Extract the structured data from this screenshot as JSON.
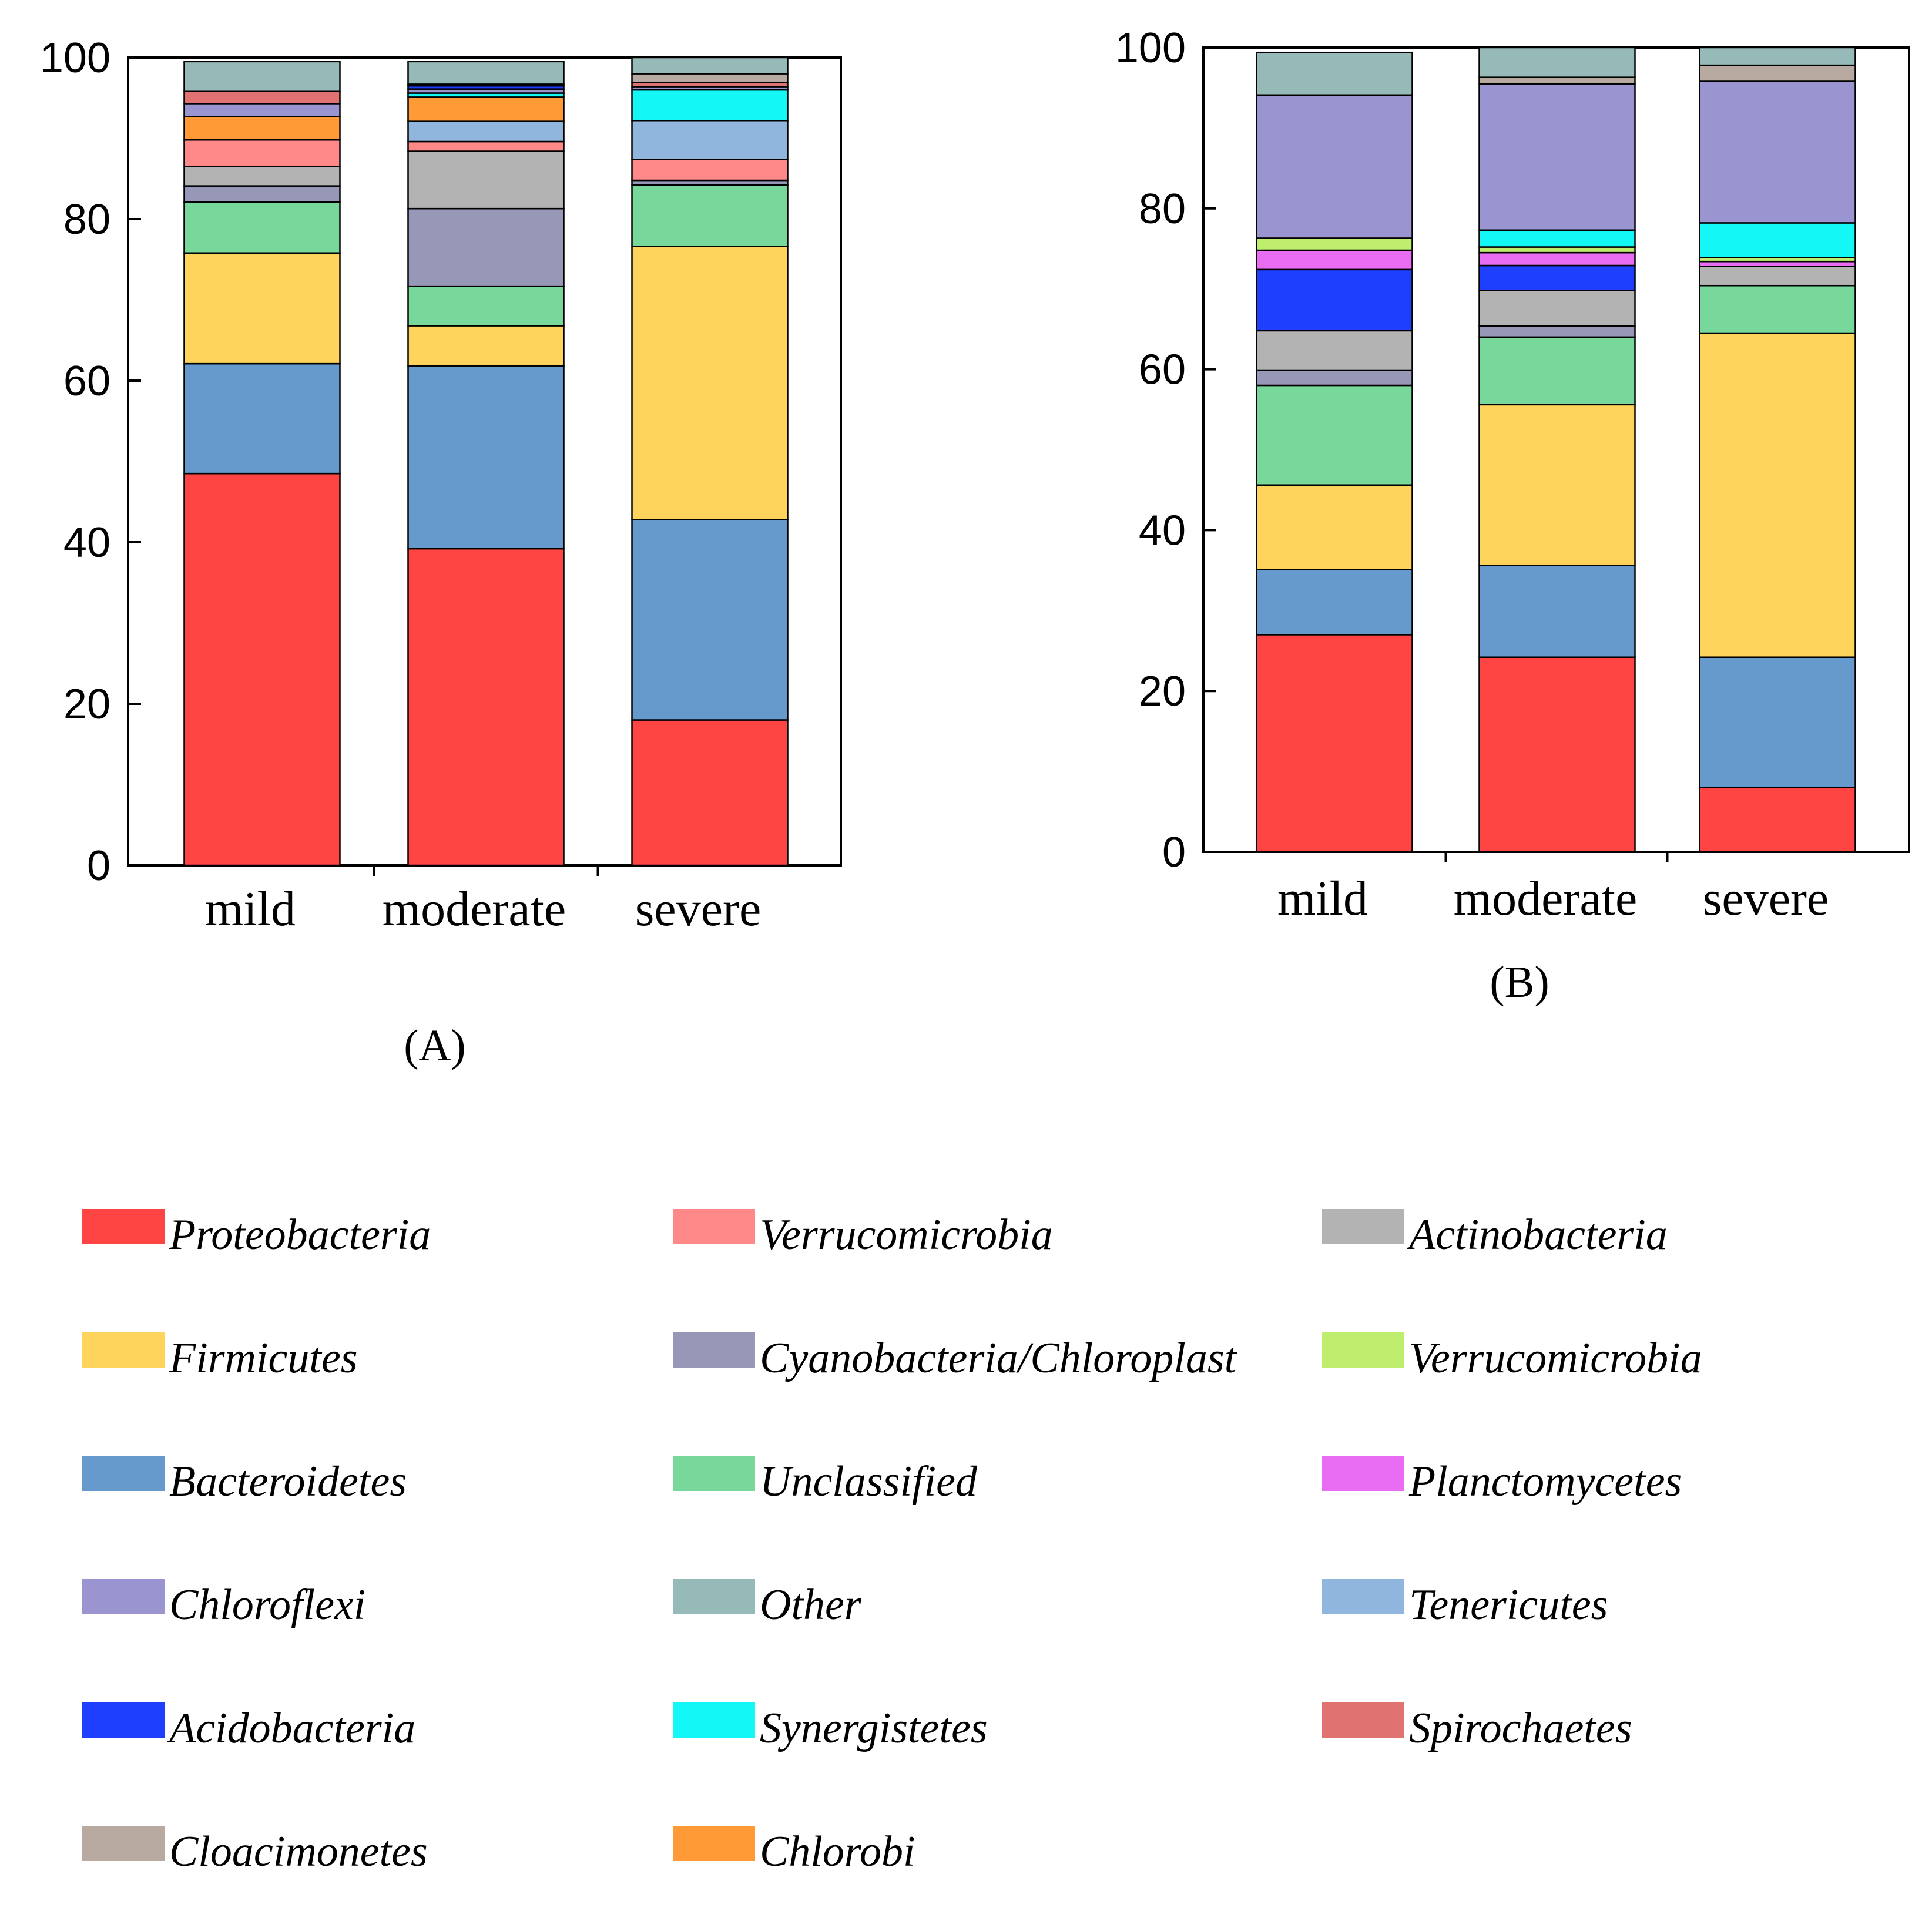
{
  "figure": {
    "panel_a_label": "(A)",
    "panel_b_label": "(B)"
  },
  "legend": [
    {
      "name": "Proteobacteria",
      "color": "#ff4444"
    },
    {
      "name": "Verrucomicrobia",
      "color": "#ff8888"
    },
    {
      "name": "Actinobacteria",
      "color": "#b3b3b3"
    },
    {
      "name": "Firmicutes",
      "color": "#ffd45c"
    },
    {
      "name": "Cyanobacteria/Chloroplast",
      "color": "#9797b7"
    },
    {
      "name": "Verrucomicrobia",
      "color": "#bfee6f"
    },
    {
      "name": "Bacteroidetes",
      "color": "#6699cc"
    },
    {
      "name": "Unclassified",
      "color": "#78d89b"
    },
    {
      "name": "Planctomycetes",
      "color": "#e86df2"
    },
    {
      "name": "Chloroflexi",
      "color": "#9a95d0"
    },
    {
      "name": "Other",
      "color": "#96bab8"
    },
    {
      "name": "Tenericutes",
      "color": "#91b6dd"
    },
    {
      "name": "Acidobacteria",
      "color": "#1f3fff"
    },
    {
      "name": "Synergistetes",
      "color": "#14f7f7"
    },
    {
      "name": "Spirochaetes",
      "color": "#e07272"
    },
    {
      "name": "Cloacimonetes",
      "color": "#b8aaa1"
    },
    {
      "name": "Chlorobi",
      "color": "#ff9a36"
    }
  ],
  "chart_data": [
    {
      "type": "bar",
      "stacked": true,
      "panel": "A",
      "categories": [
        "mild",
        "moderate",
        "severe"
      ],
      "ylim": [
        0,
        100
      ],
      "yticks": [
        0,
        20,
        40,
        60,
        80,
        100
      ],
      "xlabel": "",
      "ylabel": "",
      "series": [
        {
          "name": "Proteobacteria",
          "color": "#ff4444",
          "values": [
            48.5,
            39.2,
            18.0
          ]
        },
        {
          "name": "Bacteroidetes",
          "color": "#6699cc",
          "values": [
            13.6,
            22.6,
            24.8
          ]
        },
        {
          "name": "Firmicutes",
          "color": "#ffd45c",
          "values": [
            13.7,
            5.0,
            33.8
          ]
        },
        {
          "name": "Unclassified",
          "color": "#78d89b",
          "values": [
            6.3,
            4.9,
            7.6
          ]
        },
        {
          "name": "Cyanobacteria/Chloroplast",
          "color": "#9797b7",
          "values": [
            2.0,
            9.6,
            0.6
          ]
        },
        {
          "name": "Actinobacteria",
          "color": "#b3b3b3",
          "values": [
            2.4,
            7.1,
            0.0
          ]
        },
        {
          "name": "Verrucomicrobia",
          "color": "#ff8888",
          "values": [
            3.3,
            1.2,
            2.6
          ]
        },
        {
          "name": "Tenericutes",
          "color": "#91b6dd",
          "values": [
            0.0,
            2.5,
            4.8
          ]
        },
        {
          "name": "Chlorobi",
          "color": "#ff9a36",
          "values": [
            2.9,
            3.0,
            0.0
          ]
        },
        {
          "name": "Synergistetes",
          "color": "#14f7f7",
          "values": [
            0.0,
            0.5,
            3.8
          ]
        },
        {
          "name": "Chloroflexi",
          "color": "#9a95d0",
          "values": [
            1.6,
            0.5,
            0.4
          ]
        },
        {
          "name": "Acidobacteria",
          "color": "#1f3fff",
          "values": [
            0.0,
            0.4,
            0.0
          ]
        },
        {
          "name": "Spirochaetes",
          "color": "#e07272",
          "values": [
            1.5,
            0.0,
            0.5
          ]
        },
        {
          "name": "Cloacimonetes",
          "color": "#b8aaa1",
          "values": [
            0.0,
            0.2,
            1.1
          ]
        },
        {
          "name": "Other",
          "color": "#96bab8",
          "values": [
            3.7,
            2.8,
            2.0
          ]
        }
      ]
    },
    {
      "type": "bar",
      "stacked": true,
      "panel": "B",
      "categories": [
        "mild",
        "moderate",
        "severe"
      ],
      "ylim": [
        0,
        100
      ],
      "yticks": [
        0,
        20,
        40,
        60,
        80,
        100
      ],
      "xlabel": "",
      "ylabel": "",
      "series": [
        {
          "name": "Proteobacteria",
          "color": "#ff4444",
          "values": [
            27.0,
            24.2,
            8.0
          ]
        },
        {
          "name": "Bacteroidetes",
          "color": "#6699cc",
          "values": [
            8.1,
            11.4,
            16.2
          ]
        },
        {
          "name": "Firmicutes",
          "color": "#ffd45c",
          "values": [
            10.5,
            20.0,
            40.3
          ]
        },
        {
          "name": "Unclassified",
          "color": "#78d89b",
          "values": [
            12.4,
            8.4,
            5.9
          ]
        },
        {
          "name": "Cyanobacteria/Chloroplast",
          "color": "#9797b7",
          "values": [
            1.9,
            1.4,
            0.0
          ]
        },
        {
          "name": "Actinobacteria",
          "color": "#b3b3b3",
          "values": [
            4.9,
            4.4,
            2.4
          ]
        },
        {
          "name": "Acidobacteria",
          "color": "#1f3fff",
          "values": [
            7.6,
            3.1,
            0.0
          ]
        },
        {
          "name": "Planctomycetes",
          "color": "#e86df2",
          "values": [
            2.4,
            1.6,
            0.6
          ]
        },
        {
          "name": "Verrucomicrobia",
          "color": "#bfee6f",
          "values": [
            1.5,
            0.7,
            0.5
          ]
        },
        {
          "name": "Synergistetes",
          "color": "#14f7f7",
          "values": [
            0.0,
            2.1,
            4.3
          ]
        },
        {
          "name": "Chloroflexi",
          "color": "#9a95d0",
          "values": [
            17.8,
            18.2,
            17.6
          ]
        },
        {
          "name": "Cloacimonetes",
          "color": "#b8aaa1",
          "values": [
            0.0,
            0.8,
            2.0
          ]
        },
        {
          "name": "Other",
          "color": "#96bab8",
          "values": [
            5.3,
            3.7,
            2.2
          ]
        }
      ]
    }
  ]
}
